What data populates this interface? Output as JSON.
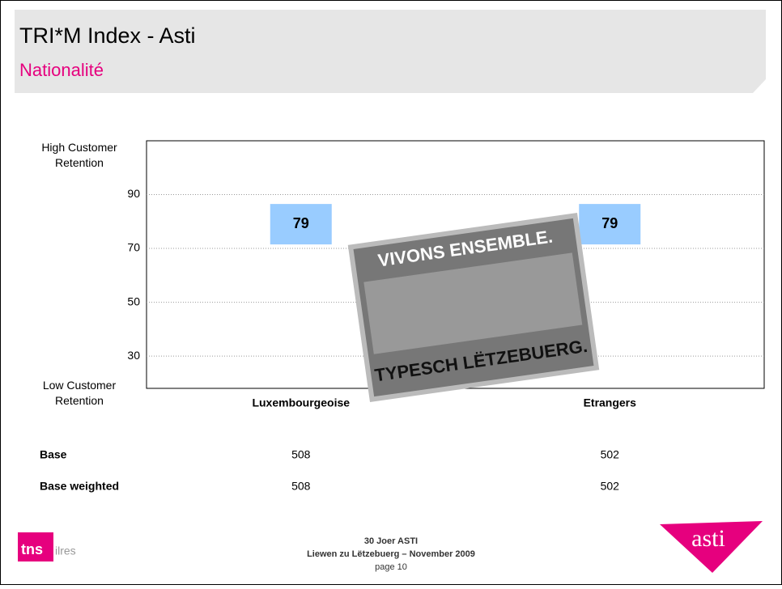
{
  "header": {
    "title": "TRI*M Index - Asti",
    "subtitle": "Nationalité"
  },
  "chart_data": {
    "type": "point",
    "categories": [
      "Luxembourgeoise",
      "Etrangers"
    ],
    "values": [
      79,
      79
    ],
    "color": "#99ccff",
    "ylim": [
      18,
      110
    ],
    "yticks": [
      30,
      50,
      70,
      90
    ],
    "grid": true,
    "annotations": {
      "top": "High Customer Retention",
      "bottom": "Low Customer Retention"
    }
  },
  "table": {
    "rows": [
      [
        "Base",
        "508",
        "502"
      ],
      [
        "Base weighted",
        "508",
        "502"
      ]
    ]
  },
  "poster": {
    "top": "VIVONS ENSEMBLE.",
    "bottom": "TYPESCH LËTZEBUERG."
  },
  "footer": {
    "lines": [
      "30 Joer ASTI",
      "Liewen zu Lëtzebuerg – November 2009",
      "page 10"
    ]
  },
  "logos": {
    "left": "tns",
    "left_sub": "ilres",
    "right": "asti"
  }
}
